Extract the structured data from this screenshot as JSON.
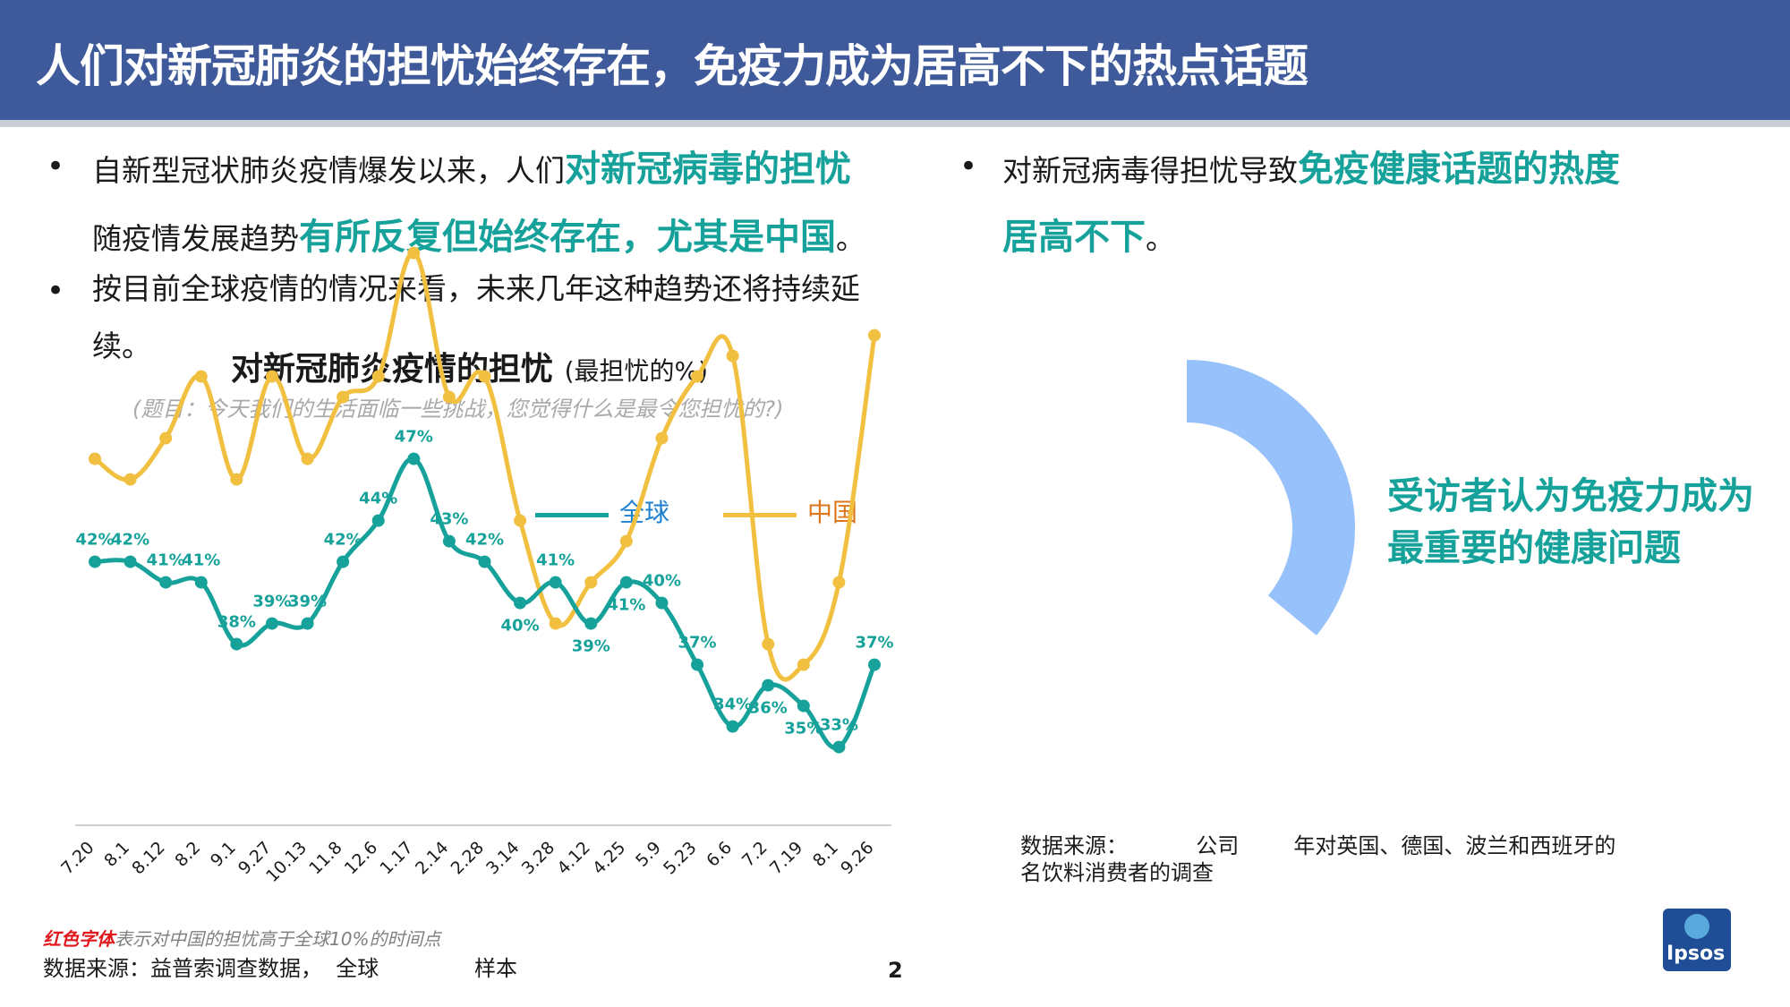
{
  "header": {
    "title": "人们对新冠肺炎的担忧始终存在，免疫力成为居高不下的热点话题"
  },
  "left_text": {
    "bullet1": {
      "part1": "自新型冠状肺炎疫情爆发以来，人们",
      "hl1": "对新冠病毒的担忧",
      "part2": "随疫情发展趋势",
      "hl2": "有所反复但始终存在，尤其是中国",
      "end": "。"
    },
    "bullet2": {
      "line1": "按目前全球疫情的情况来看，未来几年这种趋势还将持续延",
      "line2": "续。"
    },
    "bullet_symbol": "•"
  },
  "right_text": {
    "part1": "对新冠病毒得担忧导致",
    "hl1": "免疫健康话题的热度",
    "hl2": "居高不下",
    "end": "。"
  },
  "chart_header": {
    "title": "对新冠肺炎疫情的担忧",
    "unit": "(最担忧的%)",
    "question": "(题目：今天我们的生活面临一些挑战，您觉得什么是最令您担忧的?)"
  },
  "chart_data": {
    "type": "line",
    "categories": [
      "7.20",
      "8.1",
      "8.12",
      "8.2",
      "9.1",
      "9.27",
      "10.13",
      "11.8",
      "12.6",
      "1.17",
      "2.14",
      "2.28",
      "3.14",
      "3.28",
      "4.12",
      "4.25",
      "5.9",
      "5.23",
      "6.6",
      "7.2",
      "7.19",
      "8.1",
      "9.26"
    ],
    "series": [
      {
        "name": "全球",
        "color": "#16a29a",
        "values": [
          42,
          42,
          41,
          41,
          38,
          39,
          39,
          42,
          44,
          47,
          43,
          42,
          40,
          41,
          39,
          41,
          40,
          37,
          34,
          36,
          35,
          33,
          37
        ],
        "labels": [
          "42%",
          "42%",
          "41%",
          "41%",
          "38%",
          "39%",
          "39%",
          "42%",
          "44%",
          "47%",
          "43%",
          "42%",
          "40%",
          "41%",
          "39%",
          "41%",
          "40%",
          "37%",
          "34%",
          "36%",
          "35%",
          "33%",
          "37%"
        ]
      },
      {
        "name": "中国",
        "color": "#f2c040",
        "values": [
          47,
          46,
          48,
          51,
          46,
          51,
          47,
          50,
          51,
          57,
          50,
          51,
          44,
          39,
          41,
          43,
          48,
          51,
          52,
          38,
          37,
          41,
          53
        ]
      }
    ],
    "legend_placement": "top-right",
    "grid": false
  },
  "donut": {
    "label": "受访者认为免疫力成为最重要的健康问题",
    "fill_fraction": 0.36,
    "color": "#97c1fa"
  },
  "source_right": {
    "line1": "数据来源：          公司        年对英国、德国、波兰和西班牙的",
    "line2": "名饮料消费者的调查"
  },
  "footer": {
    "note_red": "红色字体",
    "note_rest": "表示对中国的担忧高于全球10%的时间点",
    "source": "数据来源：益普索调查数据，  全球              样本",
    "page_number": "2",
    "logo_text": "Ipsos"
  }
}
